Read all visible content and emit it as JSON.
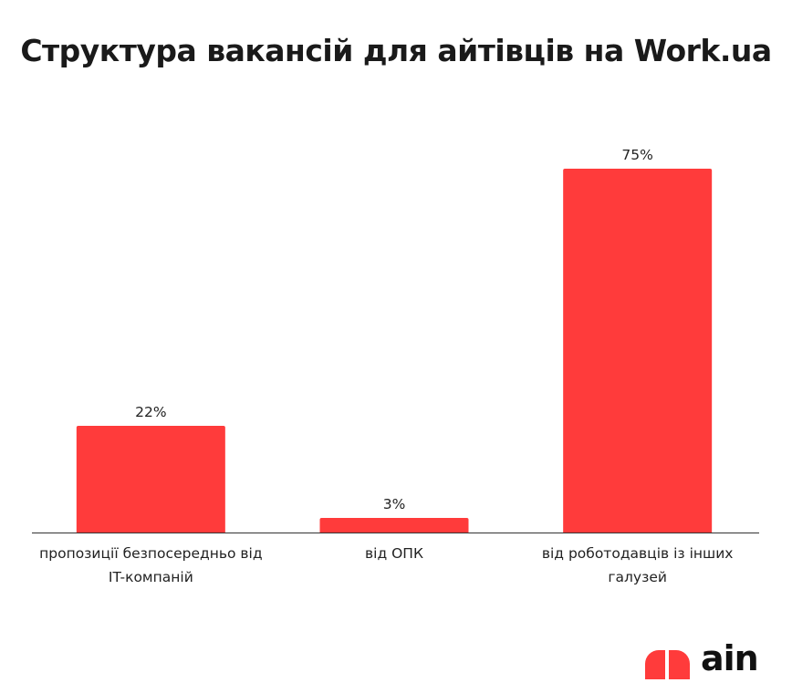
{
  "chart_data": {
    "type": "bar",
    "title": "Структура вакансій для айтівців на Work.ua",
    "categories": [
      "пропозиції безпосередньо від IT-компаній",
      "від ОПК",
      "від роботодавців із інших галузей"
    ],
    "values": [
      22,
      3,
      75
    ],
    "value_labels": [
      "22%",
      "3%",
      "75%"
    ],
    "color": "#ff3b3b",
    "logo_text": "ain"
  }
}
